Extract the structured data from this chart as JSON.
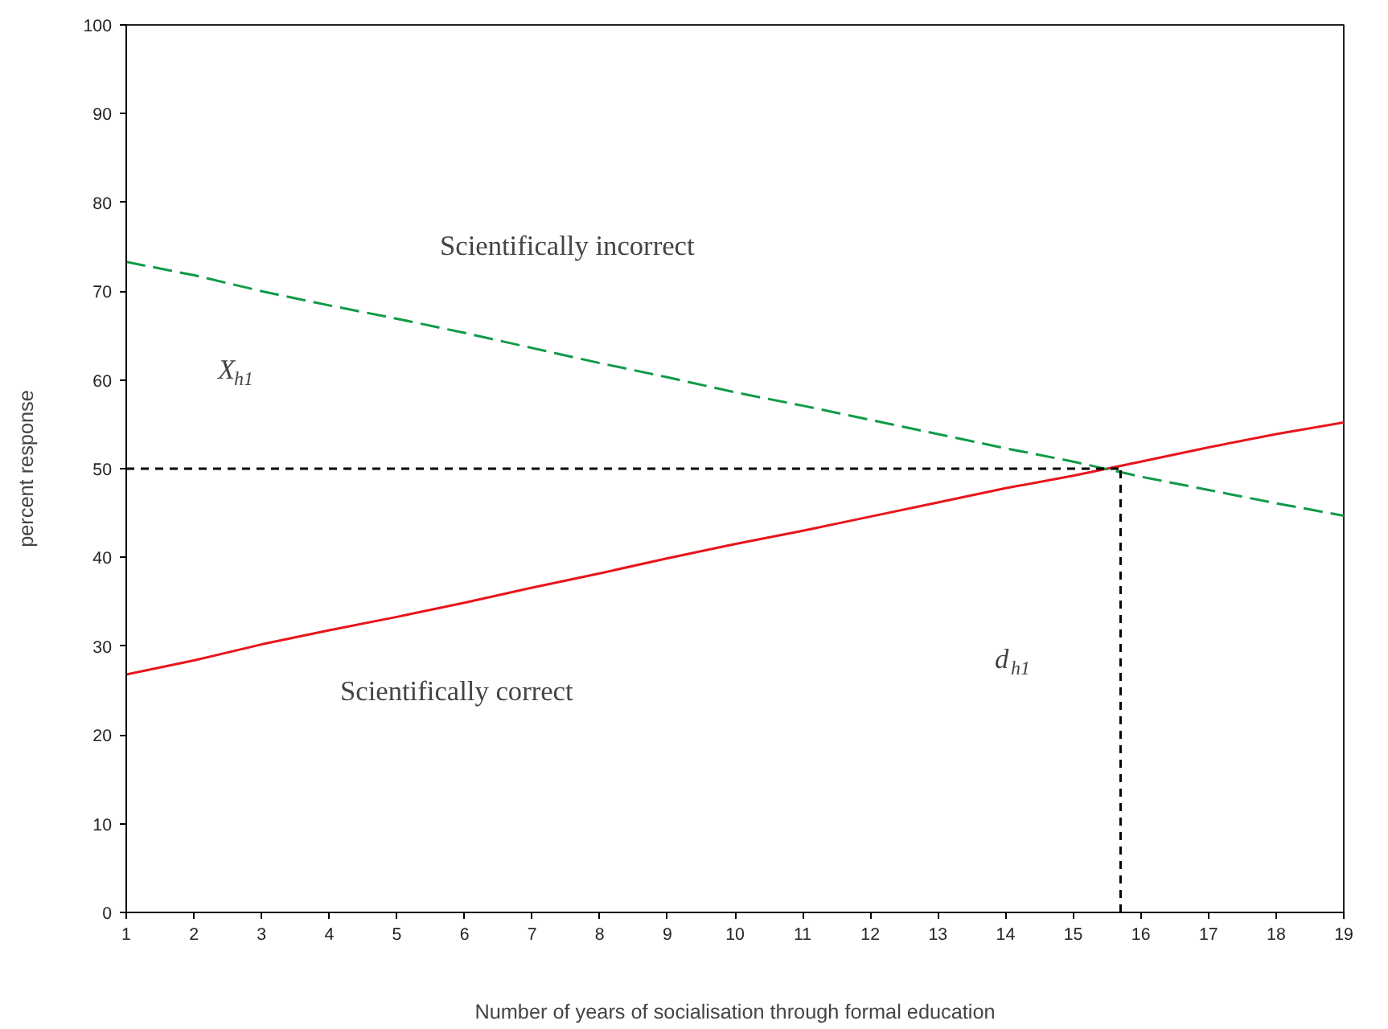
{
  "chart_data": {
    "type": "line",
    "xlabel": "Number of years of socialisation through formal education",
    "ylabel": "percent response",
    "x": [
      1,
      2,
      3,
      4,
      5,
      6,
      7,
      8,
      9,
      10,
      11,
      12,
      13,
      14,
      15,
      16,
      17,
      18,
      19
    ],
    "xlim": [
      1,
      19
    ],
    "ylim": [
      0,
      100
    ],
    "xticks": [
      1,
      2,
      3,
      4,
      5,
      6,
      7,
      8,
      9,
      10,
      11,
      12,
      13,
      14,
      15,
      16,
      17,
      18,
      19
    ],
    "yticks": [
      0,
      10,
      20,
      30,
      40,
      50,
      60,
      70,
      80,
      90,
      100
    ],
    "grid": false,
    "marker": "none",
    "series": [
      {
        "color": "#e8141c",
        "line_style": "solid",
        "values": [
          26.8,
          28.4,
          30.2,
          31.8,
          33.3,
          34.9,
          36.6,
          38.2,
          39.9,
          41.5,
          43.0,
          44.6,
          46.2,
          47.8,
          49.2,
          50.8,
          52.4,
          53.9,
          55.2
        ]
      },
      {
        "color": "#119a48",
        "line_style": "dashed",
        "values": [
          73.3,
          71.8,
          70.0,
          68.4,
          66.9,
          65.3,
          63.6,
          61.9,
          60.3,
          58.6,
          57.1,
          55.5,
          53.9,
          52.3,
          50.8,
          49.1,
          47.6,
          46.1,
          44.7
        ]
      }
    ],
    "ref_lines": [
      {
        "axis": "y",
        "value": 50,
        "color": "#000000",
        "line_style": "dotted"
      },
      {
        "axis": "x",
        "value": 15.7,
        "color": "#000000",
        "line_style": "dotted"
      }
    ],
    "annotations": [
      "Scientifically incorrect",
      "Scientifically correct",
      "X$_{h1}$",
      "d$_{h1}$"
    ]
  }
}
